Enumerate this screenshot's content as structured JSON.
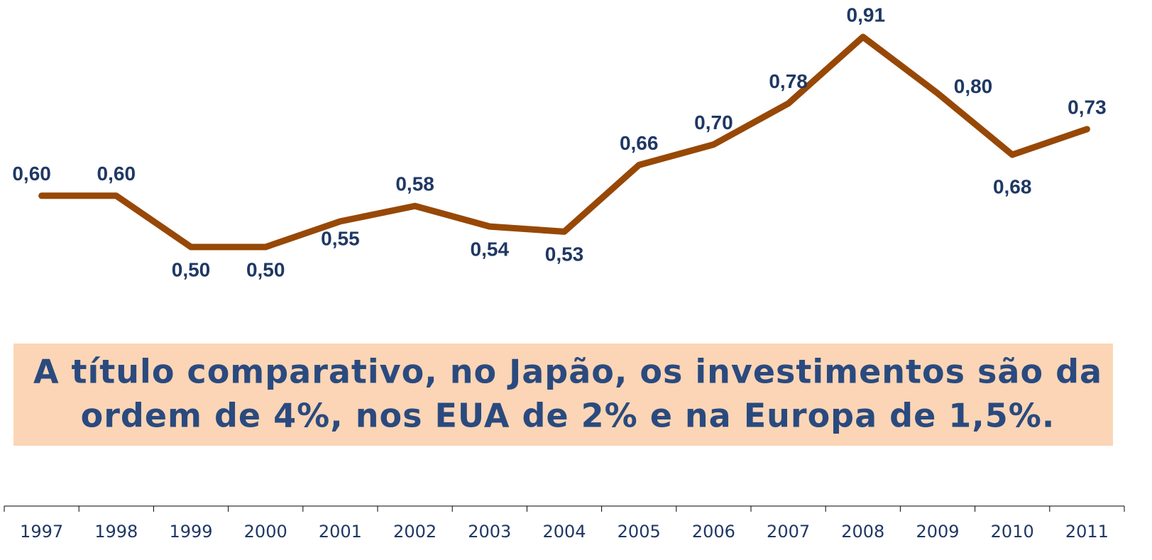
{
  "chart_data": {
    "type": "line",
    "categories": [
      "1997",
      "1998",
      "1999",
      "2000",
      "2001",
      "2002",
      "2003",
      "2004",
      "2005",
      "2006",
      "2007",
      "2008",
      "2009",
      "2010",
      "2011"
    ],
    "values": [
      0.6,
      0.6,
      0.5,
      0.5,
      0.55,
      0.58,
      0.54,
      0.53,
      0.66,
      0.7,
      0.78,
      0.91,
      0.8,
      0.68,
      0.73
    ],
    "value_labels": [
      "0,60",
      "0,60",
      "0,50",
      "0,50",
      "0,55",
      "0,58",
      "0,54",
      "0,53",
      "0,66",
      "0,70",
      "0,78",
      "0,91",
      "0,80",
      "0,68",
      "0,73"
    ],
    "color": "#974806",
    "annotation": [
      "A título comparativo, no Japão, os investimentos são da",
      "ordem de 4%, nos EUA de 2% e na Europa de 1,5%."
    ]
  }
}
